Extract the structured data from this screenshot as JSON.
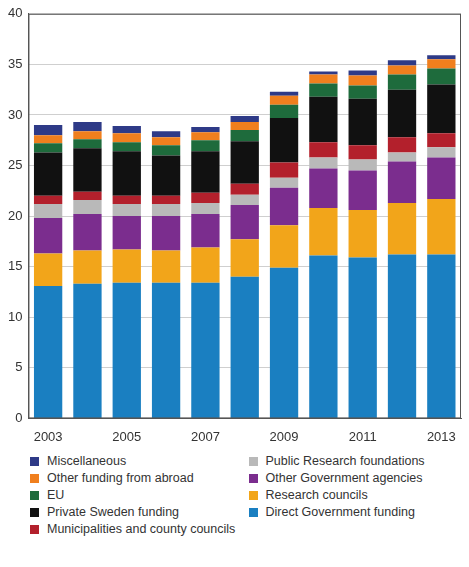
{
  "chart_data": {
    "type": "bar",
    "stacked": true,
    "grid": true,
    "legend": "bottom",
    "categories": [
      "2003",
      null,
      "2005",
      null,
      "2007",
      null,
      "2009",
      null,
      "2011",
      null,
      "2013"
    ],
    "ylim": [
      0,
      40
    ],
    "yticks": [
      0,
      5,
      10,
      15,
      20,
      25,
      30,
      35,
      40
    ],
    "series": [
      {
        "name": "Direct Government funding",
        "color": "#1a7fc1",
        "values": [
          13.1,
          13.3,
          13.4,
          13.4,
          13.4,
          14.0,
          14.9,
          16.1,
          15.9,
          16.2,
          16.2
        ]
      },
      {
        "name": "Research councils",
        "color": "#f2a51a",
        "values": [
          3.2,
          3.3,
          3.3,
          3.2,
          3.5,
          3.7,
          4.2,
          4.7,
          4.7,
          5.1,
          5.5
        ]
      },
      {
        "name": "Other Government agencies",
        "color": "#7b2d8e",
        "values": [
          3.5,
          3.6,
          3.3,
          3.4,
          3.3,
          3.4,
          3.7,
          3.9,
          3.9,
          4.1,
          4.1
        ]
      },
      {
        "name": "Public Research foundations",
        "color": "#b9b9b9",
        "values": [
          1.4,
          1.4,
          1.2,
          1.2,
          1.1,
          1.0,
          1.0,
          1.1,
          1.1,
          0.9,
          1.0
        ]
      },
      {
        "name": "Municipalities and county councils",
        "color": "#b3202c",
        "values": [
          0.8,
          0.8,
          0.8,
          0.8,
          1.0,
          1.1,
          1.5,
          1.5,
          1.4,
          1.5,
          1.4
        ]
      },
      {
        "name": "Private Sweden funding",
        "color": "#111111",
        "values": [
          4.3,
          4.3,
          4.4,
          4.0,
          4.1,
          4.2,
          4.4,
          4.5,
          4.6,
          4.7,
          4.8
        ]
      },
      {
        "name": "EU",
        "color": "#1e6b3c",
        "values": [
          0.9,
          0.9,
          0.9,
          1.0,
          1.1,
          1.1,
          1.3,
          1.3,
          1.3,
          1.5,
          1.6
        ]
      },
      {
        "name": "Other funding from abroad",
        "color": "#f07f1e",
        "values": [
          0.8,
          0.8,
          0.9,
          0.8,
          0.8,
          0.8,
          0.9,
          0.9,
          1.0,
          0.9,
          0.9
        ]
      },
      {
        "name": "Miscellaneous",
        "color": "#2e3a87",
        "values": [
          1.0,
          0.9,
          0.7,
          0.6,
          0.5,
          0.6,
          0.4,
          0.3,
          0.5,
          0.5,
          0.4
        ]
      }
    ]
  }
}
